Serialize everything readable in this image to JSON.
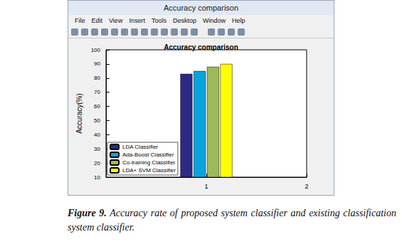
{
  "window": {
    "title": "Accuracy comparison",
    "menu": [
      "File",
      "Edit",
      "View",
      "Insert",
      "Tools",
      "Desktop",
      "Window",
      "Help"
    ]
  },
  "chart_data": {
    "type": "bar",
    "title": "Accuracy comparison",
    "ylabel": "Accuracy(%)",
    "x": [
      1
    ],
    "series": [
      {
        "name": "LDA Classifier",
        "color": "#2b2a86",
        "values": [
          83
        ]
      },
      {
        "name": "Ada-Boost Classifier",
        "color": "#0aa3dc",
        "values": [
          85
        ]
      },
      {
        "name": "Co-training Classifier",
        "color": "#9dba5b",
        "values": [
          88
        ]
      },
      {
        "name": "LDA+ SVM Classifier",
        "color": "#ffff00",
        "values": [
          90
        ]
      }
    ],
    "xlim": [
      0,
      2
    ],
    "xticks": [
      1,
      2
    ],
    "ylim": [
      10,
      100
    ],
    "yticks": [
      10,
      20,
      30,
      40,
      50,
      60,
      70,
      80,
      90,
      100
    ],
    "grid": false,
    "legend": "lower left"
  },
  "caption": {
    "label": "Figure 9.",
    "text": "Accuracy rate of proposed system classifier and existing classification system classifier."
  }
}
